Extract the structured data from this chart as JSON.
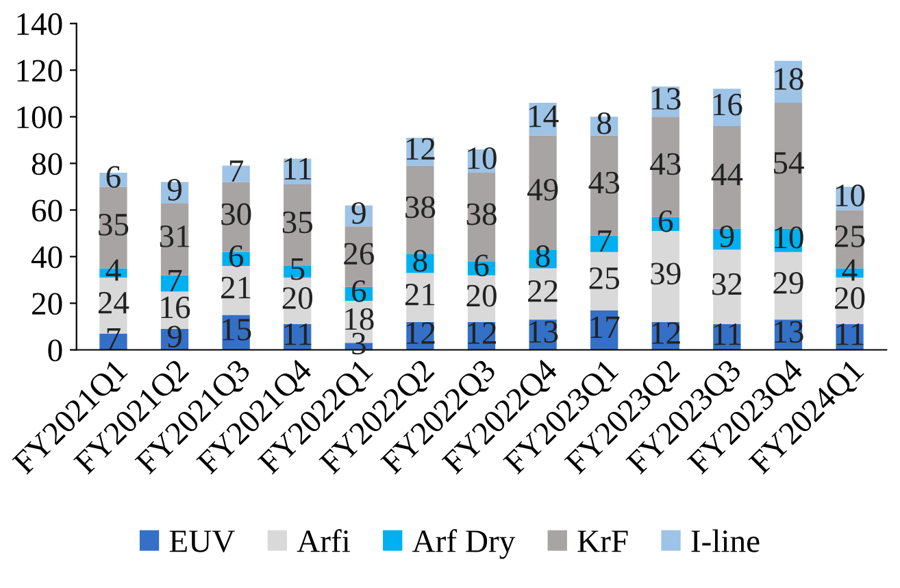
{
  "chart_data": {
    "type": "bar",
    "stacked": true,
    "categories": [
      "FY2021Q1",
      "FY2021Q2",
      "FY2021Q3",
      "FY2021Q4",
      "FY2022Q1",
      "FY2022Q2",
      "FY2022Q3",
      "FY2022Q4",
      "FY2023Q1",
      "FY2023Q2",
      "FY2023Q3",
      "FY2023Q4",
      "FY2024Q1"
    ],
    "series": [
      {
        "name": "EUV",
        "color": "#3470c6",
        "values": [
          7,
          9,
          15,
          11,
          3,
          12,
          12,
          13,
          17,
          12,
          11,
          13,
          11
        ]
      },
      {
        "name": "Arfi",
        "color": "#d9d9d9",
        "values": [
          24,
          16,
          21,
          20,
          18,
          21,
          20,
          22,
          25,
          39,
          32,
          29,
          20
        ]
      },
      {
        "name": "Arf Dry",
        "color": "#00b0f0",
        "values": [
          4,
          7,
          6,
          5,
          6,
          8,
          6,
          8,
          7,
          6,
          9,
          10,
          4
        ]
      },
      {
        "name": "KrF",
        "color": "#a8a4a4",
        "values": [
          35,
          31,
          30,
          35,
          26,
          38,
          38,
          49,
          43,
          43,
          44,
          54,
          25
        ]
      },
      {
        "name": "I-line",
        "color": "#9dc3e6",
        "values": [
          6,
          9,
          7,
          11,
          9,
          12,
          10,
          14,
          8,
          13,
          16,
          18,
          10
        ]
      }
    ],
    "ylim": [
      0,
      140
    ],
    "yticks": [
      0,
      20,
      40,
      60,
      80,
      100,
      120,
      140
    ],
    "grid": false,
    "legend": "bottom",
    "data_labels": true
  }
}
